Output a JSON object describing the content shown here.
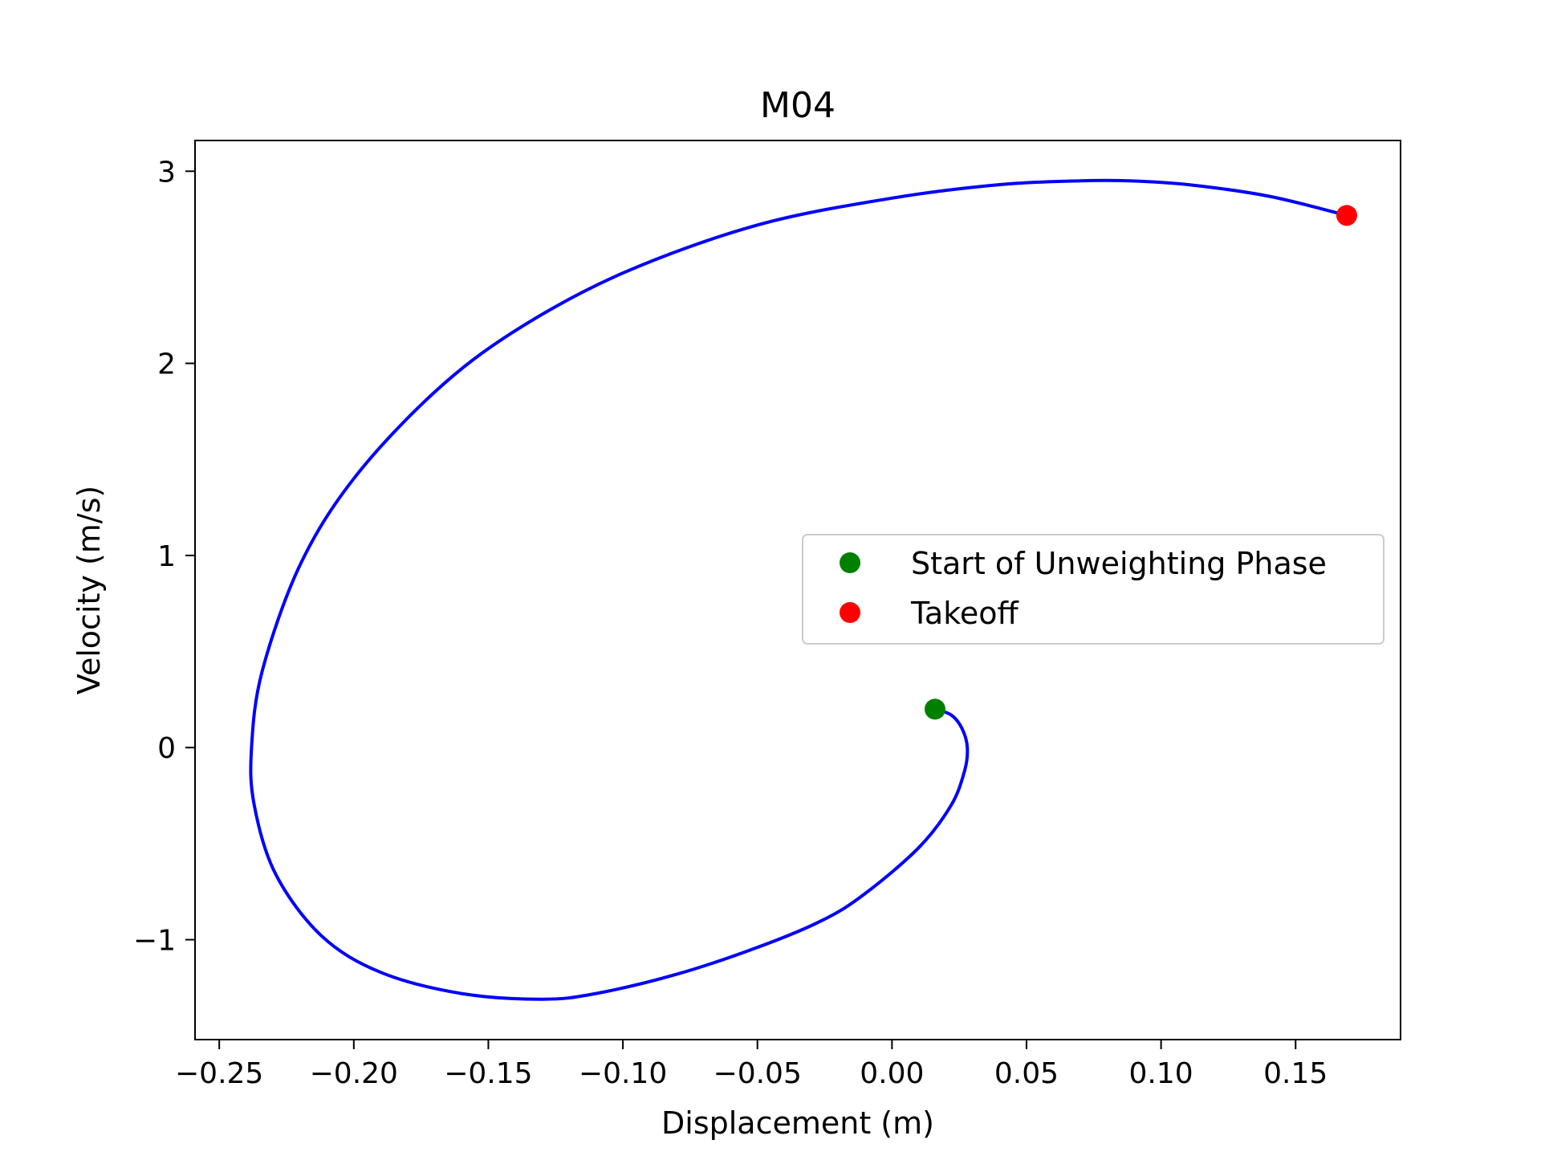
{
  "chart_data": {
    "type": "line",
    "title": "M04",
    "xlabel": "Displacement (m)",
    "ylabel": "Velocity (m/s)",
    "xlim": [
      -0.259,
      0.189
    ],
    "ylim": [
      -1.52,
      3.16
    ],
    "xticks": [
      -0.25,
      -0.2,
      -0.15,
      -0.1,
      -0.05,
      0.0,
      0.05,
      0.1,
      0.15
    ],
    "xtick_labels": [
      "−0.25",
      "−0.20",
      "−0.15",
      "−0.10",
      "−0.05",
      "0.00",
      "0.05",
      "0.10",
      "0.15"
    ],
    "yticks": [
      -1,
      0,
      1,
      2,
      3
    ],
    "ytick_labels": [
      "−1",
      "0",
      "1",
      "2",
      "3"
    ],
    "grid": false,
    "legend_placement": "center-right",
    "series": [
      {
        "kind": "line",
        "color": "#0000ff",
        "x": [
          0.016,
          0.022,
          0.026,
          0.028,
          0.027,
          0.022,
          0.01,
          -0.01,
          -0.026,
          -0.05,
          -0.08,
          -0.11,
          -0.13,
          -0.16,
          -0.19,
          -0.212,
          -0.229,
          -0.237,
          -0.238,
          -0.234,
          -0.22,
          -0.2,
          -0.17,
          -0.14,
          -0.1,
          -0.05,
          0.0,
          0.04,
          0.07,
          0.088,
          0.11,
          0.14,
          0.169
        ],
        "y": [
          0.2,
          0.17,
          0.1,
          0.0,
          -0.12,
          -0.3,
          -0.52,
          -0.76,
          -0.9,
          -1.04,
          -1.18,
          -1.28,
          -1.31,
          -1.28,
          -1.17,
          -0.98,
          -0.66,
          -0.3,
          0.0,
          0.4,
          0.95,
          1.4,
          1.85,
          2.17,
          2.47,
          2.72,
          2.86,
          2.93,
          2.95,
          2.95,
          2.93,
          2.87,
          2.77
        ]
      }
    ],
    "markers": [
      {
        "name": "Start of Unweighting Phase",
        "x": 0.016,
        "y": 0.2,
        "color": "#008000"
      },
      {
        "name": "Takeoff",
        "x": 0.169,
        "y": 2.77,
        "color": "#ff0000"
      }
    ]
  }
}
